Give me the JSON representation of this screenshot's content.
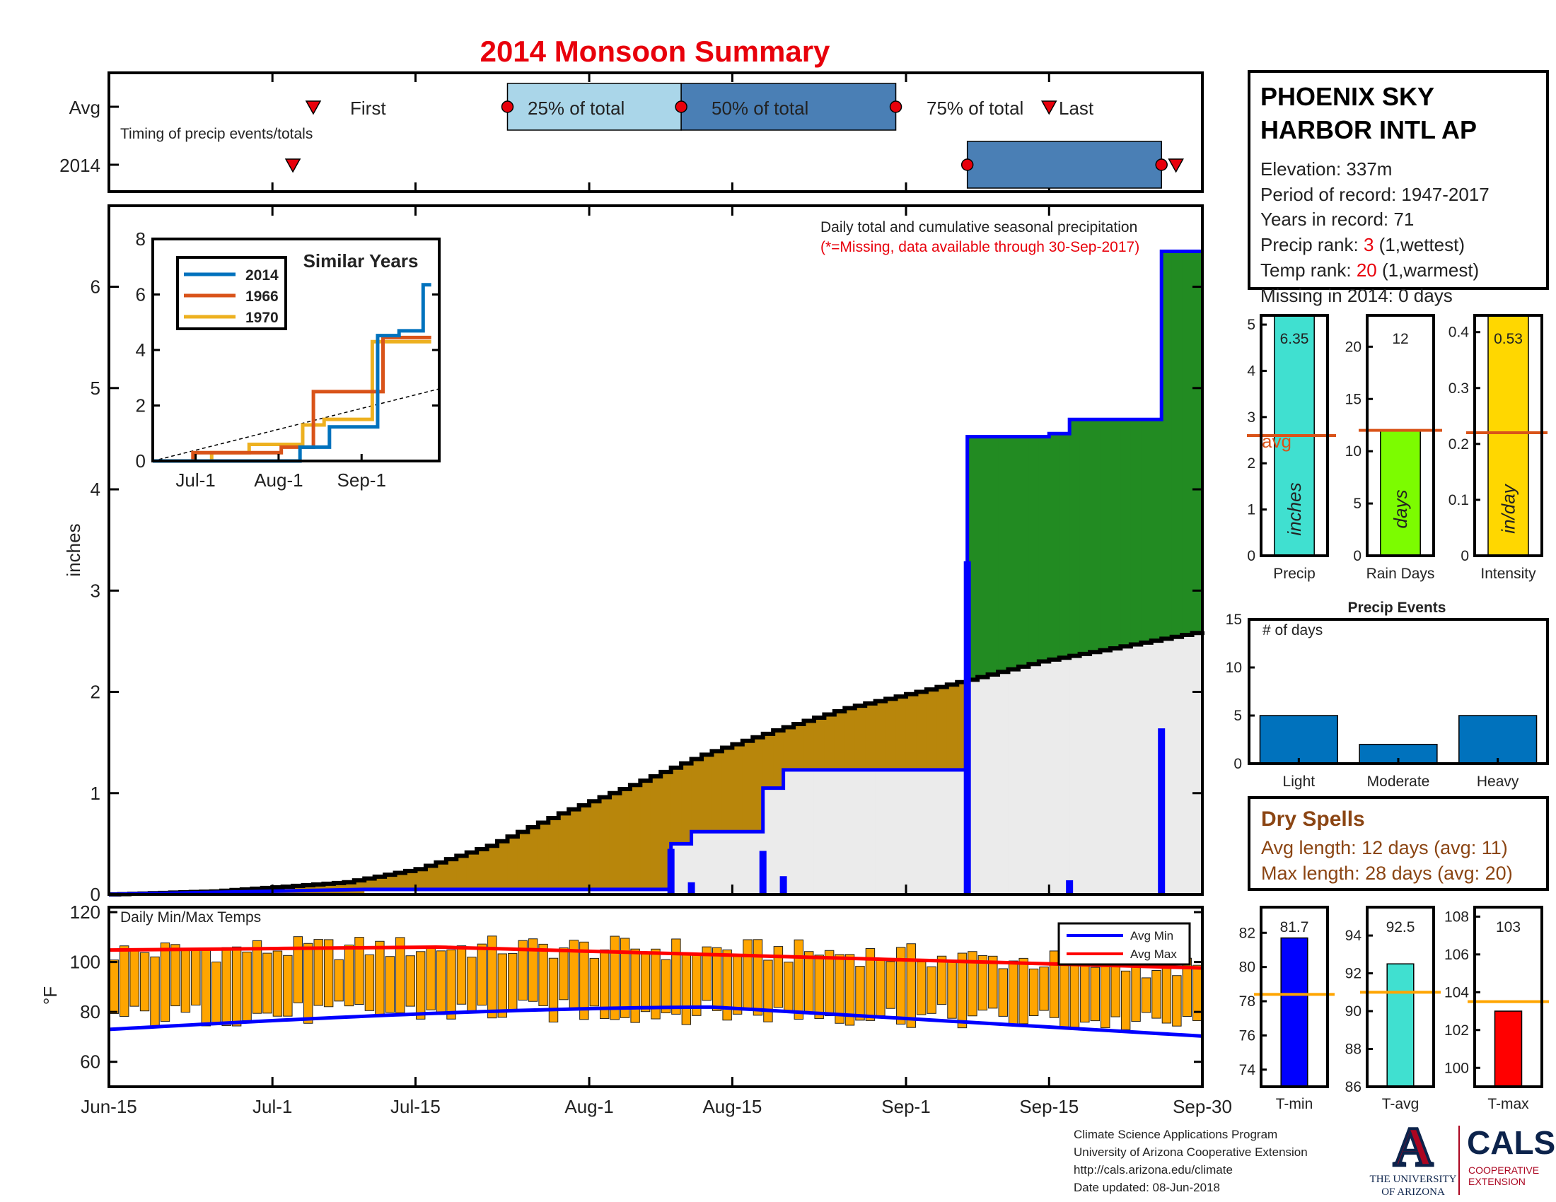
{
  "title": "2014 Monsoon Summary",
  "timing": {
    "row_avg": "Avg",
    "row_year": "2014",
    "caption": "Timing of precip events/totals",
    "first_label": "First",
    "p25_label": "25% of total",
    "p50_label": "50% of total",
    "p75_label": "75% of total",
    "last_label": "Last",
    "avg": {
      "first": "Jul-5",
      "p25": "Jul-24",
      "p50": "Aug-10",
      "p75": "Aug-31",
      "last": "Sep-15"
    },
    "year": {
      "first": "Jul-3",
      "p25": "Sep-7",
      "p50": "Sep-7",
      "p75": "Sep-26",
      "last": "Sep-27"
    },
    "colors": {
      "early": "#aad6e9",
      "late": "#4a7fb5",
      "marker": "#e8000b"
    }
  },
  "main": {
    "ylabel": "inches",
    "ticks_y": [
      "0",
      "1",
      "2",
      "3",
      "4",
      "5",
      "6"
    ],
    "ticks_x": [
      "Jun-15",
      "Jul-1",
      "Jul-15",
      "Aug-1",
      "Aug-15",
      "Sep-1",
      "Sep-15",
      "Sep-30"
    ],
    "note_line1": "Daily total and cumulative seasonal precipitation",
    "note_line2": "(*=Missing, data available through 30-Sep-2017)",
    "colors": {
      "above": "#228b22",
      "below": "#b8860b",
      "avgfill": "#ebebeb",
      "cum": "#0000ff",
      "avgline": "#000000",
      "daily": "#0000ff"
    }
  },
  "inset": {
    "title": "Similar Years",
    "ticks_y": [
      "0",
      "2",
      "4",
      "6",
      "8"
    ],
    "ticks_x": [
      "Jul-1",
      "Aug-1",
      "Sep-1"
    ],
    "legend": [
      {
        "name": "2014",
        "color": "#0072bd"
      },
      {
        "name": "1966",
        "color": "#d95319"
      },
      {
        "name": "1970",
        "color": "#edb120"
      }
    ]
  },
  "temps": {
    "title": "Daily Min/Max Temps",
    "ylabel": "°F",
    "ticks_y": [
      "60",
      "80",
      "100",
      "120"
    ],
    "legend_min": "Avg Min",
    "legend_max": "Avg Max",
    "colors": {
      "bar": "#ffa500",
      "min": "#0000ff",
      "max": "#ff0000"
    }
  },
  "station": {
    "name_line1": "PHOENIX SKY",
    "name_line2": "HARBOR INTL AP",
    "elevation": "Elevation: 337m",
    "period": "Period of record: 1947-2017",
    "years": "Years in record: 71",
    "precip_rank_label": "Precip rank: ",
    "precip_rank_value": "3",
    "precip_rank_note": " (1,wettest)",
    "temp_rank_label": "Temp rank: ",
    "temp_rank_value": "20",
    "temp_rank_note": " (1,warmest)",
    "missing": "Missing in 2014: 0 days"
  },
  "summary_bars": [
    {
      "label": "Precip",
      "value_text": "6.35",
      "unit": "inches",
      "avg_label": "avg",
      "color": "#40e0d0",
      "ticks": [
        "0",
        "1",
        "2",
        "3",
        "4",
        "5"
      ]
    },
    {
      "label": "Rain Days",
      "value_text": "12",
      "unit": "days",
      "color": "#7cfc00",
      "ticks": [
        "0",
        "5",
        "10",
        "15",
        "20"
      ]
    },
    {
      "label": "Intensity",
      "value_text": "0.53",
      "unit": "in/day",
      "color": "#ffd700",
      "ticks": [
        "0",
        "0.1",
        "0.2",
        "0.3",
        "0.4"
      ]
    }
  ],
  "events": {
    "title": "Precip Events",
    "ylabel": "# of days",
    "ticks_y": [
      "0",
      "5",
      "10",
      "15"
    ],
    "categories": [
      "Light",
      "Moderate",
      "Heavy"
    ],
    "color": "#0072bd"
  },
  "dry_spells": {
    "title": "Dry Spells",
    "avg_length": "Avg length: 12 days (avg: 11)",
    "max_length": "Max length: 28 days (avg: 20)",
    "color": "#8b4513"
  },
  "temp_bars": [
    {
      "label": "T-min",
      "value_text": "81.7",
      "color": "#0000ff",
      "ticks": [
        "74",
        "76",
        "78",
        "80",
        "82"
      ]
    },
    {
      "label": "T-avg",
      "value_text": "92.5",
      "color": "#40e0d0",
      "ticks": [
        "86",
        "88",
        "90",
        "92",
        "94"
      ]
    },
    {
      "label": "T-max",
      "value_text": "103",
      "color": "#ff0000",
      "ticks": [
        "100",
        "102",
        "104",
        "106",
        "108"
      ]
    }
  ],
  "footer": {
    "line1": "Climate Science Applications Program",
    "line2": "University of Arizona Cooperative Extension",
    "line3": "http://cals.arizona.edu/climate",
    "line4": " Date updated: 08-Jun-2018",
    "ua_line1": "THE UNIVERSITY",
    "ua_line2": "OF ARIZONA",
    "cals": "CALS",
    "cals_line1": "COOPERATIVE",
    "cals_line2": "EXTENSION"
  },
  "chart_data": [
    {
      "type": "area",
      "name": "main",
      "x_start": "2014-06-15",
      "x_end": "2014-09-30",
      "ylim": [
        0,
        6.8
      ],
      "cumulative_2014": [
        [
          "2014-06-15",
          0
        ],
        [
          "2014-07-10",
          0.05
        ],
        [
          "2014-08-09",
          0.05
        ],
        [
          "2014-08-09",
          0.5
        ],
        [
          "2014-08-11",
          0.5
        ],
        [
          "2014-08-11",
          0.62
        ],
        [
          "2014-08-18",
          0.62
        ],
        [
          "2014-08-18",
          1.05
        ],
        [
          "2014-08-20",
          1.05
        ],
        [
          "2014-08-20",
          1.23
        ],
        [
          "2014-09-07",
          1.23
        ],
        [
          "2014-09-07",
          4.52
        ],
        [
          "2014-09-15",
          4.52
        ],
        [
          "2014-09-15",
          4.55
        ],
        [
          "2014-09-17",
          4.55
        ],
        [
          "2014-09-17",
          4.69
        ],
        [
          "2014-09-26",
          4.69
        ],
        [
          "2014-09-26",
          6.35
        ],
        [
          "2014-09-30",
          6.35
        ]
      ],
      "average_cumulative": [
        [
          "2014-06-15",
          0
        ],
        [
          "2014-06-25",
          0.03
        ],
        [
          "2014-07-01",
          0.07
        ],
        [
          "2014-07-08",
          0.12
        ],
        [
          "2014-07-15",
          0.25
        ],
        [
          "2014-07-22",
          0.48
        ],
        [
          "2014-07-29",
          0.8
        ],
        [
          "2014-08-05",
          1.08
        ],
        [
          "2014-08-12",
          1.38
        ],
        [
          "2014-08-19",
          1.62
        ],
        [
          "2014-08-26",
          1.84
        ],
        [
          "2014-09-02",
          2.0
        ],
        [
          "2014-09-07",
          2.12
        ],
        [
          "2014-09-14",
          2.3
        ],
        [
          "2014-09-21",
          2.43
        ],
        [
          "2014-09-30",
          2.6
        ]
      ],
      "daily_2014": [
        [
          "2014-08-09",
          0.45
        ],
        [
          "2014-08-11",
          0.12
        ],
        [
          "2014-08-18",
          0.43
        ],
        [
          "2014-08-20",
          0.18
        ],
        [
          "2014-09-07",
          3.29
        ],
        [
          "2014-09-17",
          0.14
        ],
        [
          "2014-09-26",
          1.64
        ]
      ]
    },
    {
      "type": "line",
      "name": "similar_years",
      "ylim": [
        0,
        8
      ],
      "series": [
        {
          "name": "2014",
          "points": [
            [
              0,
              0
            ],
            [
              55,
              0
            ],
            [
              55,
              0.5
            ],
            [
              66,
              0.5
            ],
            [
              66,
              1.23
            ],
            [
              84,
              1.23
            ],
            [
              84,
              4.52
            ],
            [
              92,
              4.52
            ],
            [
              92,
              4.69
            ],
            [
              101,
              4.69
            ],
            [
              101,
              6.35
            ],
            [
              104,
              6.35
            ]
          ]
        },
        {
          "name": "1966",
          "points": [
            [
              0,
              0
            ],
            [
              15,
              0
            ],
            [
              15,
              0.3
            ],
            [
              48,
              0.3
            ],
            [
              48,
              0.5
            ],
            [
              60,
              0.5
            ],
            [
              60,
              2.5
            ],
            [
              86,
              2.5
            ],
            [
              86,
              4.45
            ],
            [
              104,
              4.45
            ]
          ]
        },
        {
          "name": "1970",
          "points": [
            [
              0,
              0
            ],
            [
              22,
              0
            ],
            [
              22,
              0.3
            ],
            [
              36,
              0.3
            ],
            [
              36,
              0.6
            ],
            [
              56,
              0.6
            ],
            [
              56,
              1.3
            ],
            [
              64,
              1.3
            ],
            [
              64,
              1.5
            ],
            [
              82,
              1.5
            ],
            [
              82,
              4.3
            ],
            [
              104,
              4.3
            ]
          ]
        }
      ]
    },
    {
      "type": "bar",
      "name": "daily_temps",
      "ylim": [
        50,
        122
      ],
      "avg_min_range": [
        73,
        82
      ],
      "avg_max_range": [
        97,
        106
      ]
    },
    {
      "type": "bar",
      "name": "summary",
      "categories": [
        "Precip",
        "Rain Days",
        "Intensity"
      ],
      "values": [
        6.35,
        12,
        0.53
      ],
      "averages": [
        2.6,
        12,
        0.22
      ],
      "ylims": [
        [
          0,
          5.2
        ],
        [
          0,
          23
        ],
        [
          0,
          0.43
        ]
      ]
    },
    {
      "type": "bar",
      "name": "precip_events",
      "categories": [
        "Light",
        "Moderate",
        "Heavy"
      ],
      "values": [
        5,
        2,
        5
      ],
      "ylim": [
        0,
        15
      ]
    },
    {
      "type": "bar",
      "name": "temperature",
      "categories": [
        "T-min",
        "T-avg",
        "T-max"
      ],
      "values": [
        81.7,
        92.5,
        103
      ],
      "averages": [
        78.4,
        91,
        103.5
      ],
      "ylims": [
        [
          73,
          83.5
        ],
        [
          86,
          95.5
        ],
        [
          99,
          108.5
        ]
      ]
    }
  ]
}
